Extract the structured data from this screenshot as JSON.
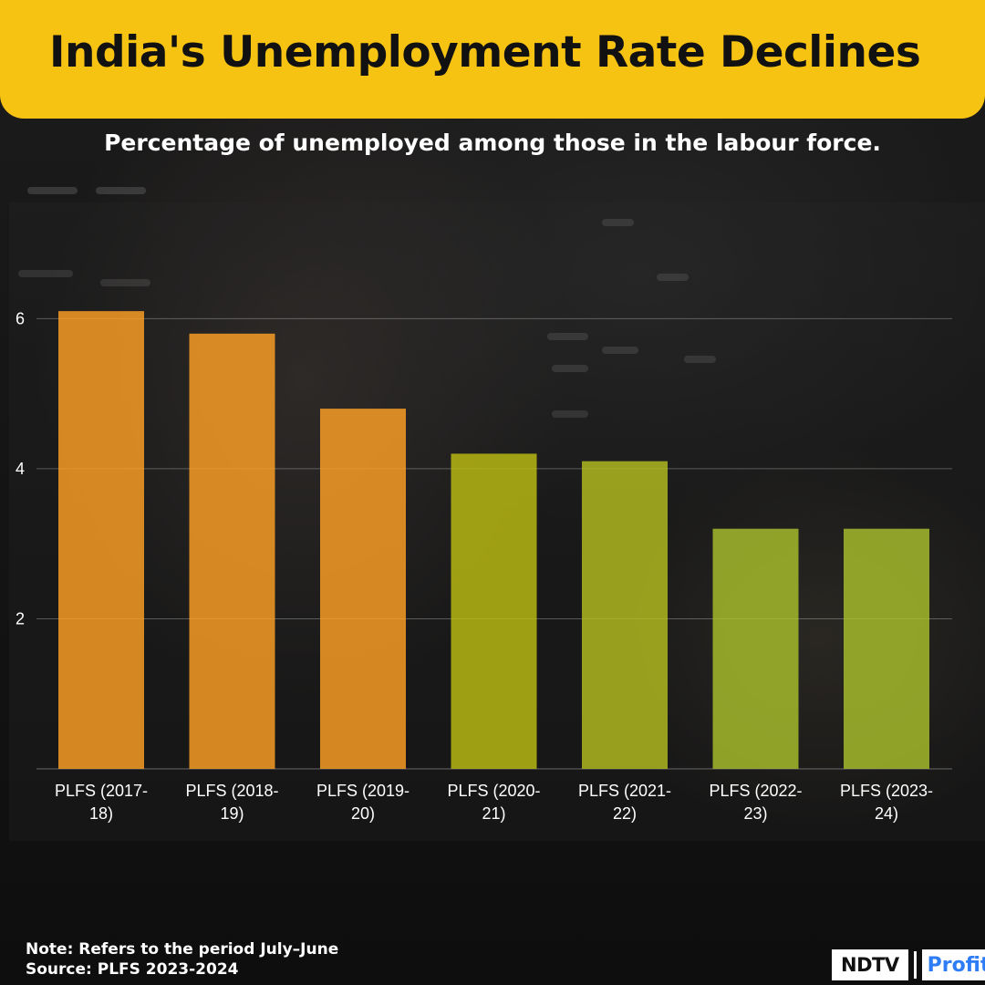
{
  "header": {
    "title": "India's Unemployment Rate Declines",
    "subtitle": "Percentage of unemployed among those in the labour force."
  },
  "footer": {
    "note": "Note: Refers to the period July–June",
    "source": "Source: PLFS 2023-2024"
  },
  "logo": {
    "ndtv": "NDTV",
    "profit": "Profit"
  },
  "colors": {
    "title_bar": "#f7c312",
    "bar_orange": "#ffa124",
    "bar_olive": "#bdbd14",
    "bar_green": "#aebf2c"
  },
  "chart_data": {
    "type": "bar",
    "title": "India's Unemployment Rate Declines",
    "subtitle": "Percentage of unemployed among those in the labour force.",
    "xlabel": "",
    "ylabel": "",
    "ylim": [
      0,
      6.6
    ],
    "yticks": [
      2,
      4,
      6
    ],
    "grid": true,
    "categories": [
      [
        "PLFS (2017-",
        "18)"
      ],
      [
        "PLFS (2018-",
        "19)"
      ],
      [
        "PLFS (2019-",
        "20)"
      ],
      [
        "PLFS (2020-",
        "21)"
      ],
      [
        "PLFS (2021-",
        "22)"
      ],
      [
        "PLFS (2022-",
        "23)"
      ],
      [
        "PLFS (2023-",
        "24)"
      ]
    ],
    "values": [
      6.1,
      5.8,
      4.8,
      4.2,
      4.1,
      3.2,
      3.2
    ],
    "bar_colors": [
      "#ffa124",
      "#ffa124",
      "#ffa124",
      "#bdbd14",
      "#b5bd20",
      "#a9c02c",
      "#a9c02c"
    ]
  }
}
